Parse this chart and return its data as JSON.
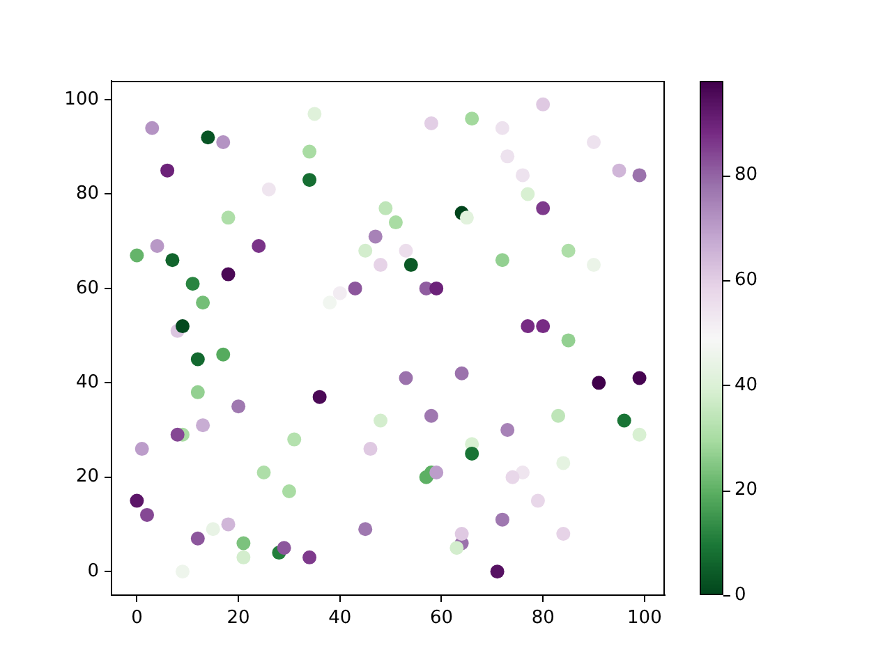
{
  "chart_data": {
    "type": "scatter",
    "x": [
      3,
      14,
      17,
      6,
      35,
      34,
      34,
      26,
      18,
      0,
      4,
      7,
      24,
      18,
      11,
      13,
      8,
      9,
      38,
      40,
      43,
      45,
      47,
      48,
      58,
      66,
      80,
      72,
      73,
      90,
      76,
      95,
      99,
      77,
      80,
      49,
      51,
      64,
      65,
      53,
      54,
      72,
      85,
      90,
      57,
      59,
      77,
      80,
      85,
      12,
      17,
      12,
      36,
      20,
      13,
      9,
      8,
      1,
      31,
      25,
      30,
      0,
      2,
      15,
      18,
      12,
      21,
      21,
      28,
      29,
      34,
      9,
      45,
      48,
      46,
      53,
      64,
      91,
      99,
      58,
      83,
      96,
      99,
      73,
      66,
      66,
      84,
      57,
      58,
      59,
      76,
      74,
      79,
      72,
      84,
      64,
      64,
      63,
      71
    ],
    "values": [
      94,
      92,
      91,
      85,
      97,
      89,
      83,
      81,
      75,
      67,
      69,
      66,
      69,
      63,
      61,
      57,
      51,
      52,
      57,
      59,
      60,
      68,
      71,
      65,
      95,
      96,
      99,
      94,
      88,
      91,
      84,
      85,
      84,
      80,
      77,
      77,
      74,
      76,
      75,
      68,
      65,
      66,
      68,
      65,
      60,
      60,
      52,
      52,
      49,
      45,
      46,
      38,
      37,
      35,
      31,
      29,
      29,
      26,
      28,
      21,
      17,
      15,
      12,
      9,
      10,
      7,
      6,
      3,
      4,
      5,
      3,
      0,
      9,
      32,
      26,
      41,
      42,
      40,
      41,
      33,
      33,
      32,
      29,
      30,
      27,
      25,
      23,
      20,
      21,
      21,
      21,
      20,
      15,
      11,
      8,
      6,
      8,
      5,
      0
    ],
    "cvalues": [
      72,
      3,
      72,
      90,
      41,
      30,
      8,
      54,
      31,
      21,
      71,
      6,
      87,
      96,
      12,
      23,
      62,
      1,
      47,
      52,
      82,
      38,
      75,
      59,
      60,
      29,
      61,
      55,
      55,
      55,
      55,
      65,
      78,
      39,
      86,
      34,
      30,
      0,
      42,
      56,
      4,
      27,
      31,
      45,
      81,
      90,
      88,
      88,
      27,
      7,
      19,
      27,
      96,
      77,
      67,
      30,
      84,
      70,
      32,
      31,
      30,
      93,
      84,
      44,
      65,
      82,
      24,
      38,
      11,
      82,
      86,
      46,
      77,
      38,
      61,
      78,
      78,
      98,
      97,
      77,
      34,
      9,
      39,
      75,
      39,
      9,
      43,
      20,
      20,
      70,
      54,
      58,
      58,
      77,
      59,
      78,
      61,
      38,
      94
    ],
    "clim": [
      0,
      98
    ],
    "cticks": [
      0,
      20,
      40,
      60,
      80
    ],
    "xlim": [
      -5,
      104
    ],
    "ylim": [
      -5,
      104
    ],
    "xticks": [
      0,
      20,
      40,
      60,
      80,
      100
    ],
    "yticks": [
      0,
      20,
      40,
      60,
      80,
      100
    ],
    "grid": false,
    "legend": false,
    "marker": "circle"
  }
}
